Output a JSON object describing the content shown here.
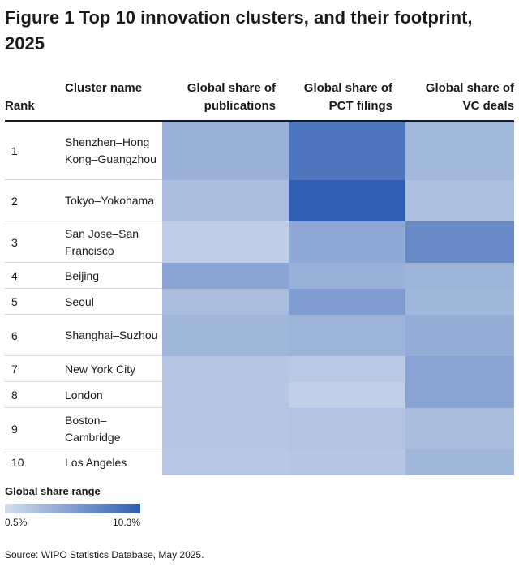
{
  "title": "Figure 1 Top 10 innovation clusters, and their footprint, 2025",
  "headers": {
    "rank": "Rank",
    "cluster": "Cluster name",
    "publications": "Global share of publications",
    "pct": "Global share of PCT filings",
    "vc": "Global share of VC deals"
  },
  "legend": {
    "title": "Global share range",
    "min_label": "0.5%",
    "max_label": "10.3%",
    "min": 0.5,
    "max": 10.3,
    "color_low": "#d5deee",
    "color_high": "#2f5eb2"
  },
  "source": "Source: WIPO Statistics Database, May 2025.",
  "chart_data": {
    "type": "heatmap",
    "title": "Figure 1 Top 10 innovation clusters, and their footprint, 2025",
    "columns": [
      "Global share of publications",
      "Global share of PCT filings",
      "Global share of VC deals"
    ],
    "value_range": [
      0.5,
      10.3
    ],
    "rows": [
      {
        "rank": "1",
        "name": "Shenzhen–Hong Kong–Guangzhou",
        "values": [
          4.0,
          8.5,
          3.5
        ]
      },
      {
        "rank": "2",
        "name": "Tokyo–Yokohama",
        "values": [
          3.0,
          10.3,
          2.8
        ]
      },
      {
        "rank": "3",
        "name": "San Jose–San Francisco",
        "values": [
          1.8,
          4.6,
          7.0
        ]
      },
      {
        "rank": "4",
        "name": "Beijing",
        "values": [
          5.0,
          4.0,
          3.8
        ]
      },
      {
        "rank": "5",
        "name": "Seoul",
        "values": [
          3.0,
          5.6,
          3.6
        ]
      },
      {
        "rank": "6",
        "name": "Shanghai–Suzhou",
        "values": [
          3.6,
          3.8,
          4.3
        ]
      },
      {
        "rank": "7",
        "name": "New York City",
        "values": [
          2.4,
          2.1,
          5.0
        ]
      },
      {
        "rank": "8",
        "name": "London",
        "values": [
          2.4,
          1.6,
          5.0
        ]
      },
      {
        "rank": "9",
        "name": "Boston–Cambridge",
        "values": [
          2.4,
          2.6,
          3.1
        ]
      },
      {
        "rank": "10",
        "name": "Los Angeles",
        "values": [
          2.2,
          2.4,
          3.6
        ]
      }
    ]
  }
}
